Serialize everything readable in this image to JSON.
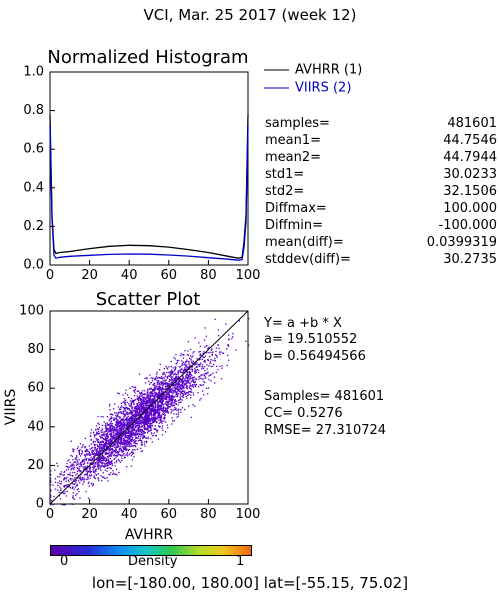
{
  "header": {
    "title": "VCI,  Mar. 25 2017 (week 12)"
  },
  "chart_data": [
    {
      "type": "line",
      "title": "Normalized Histogram",
      "xlim": [
        0,
        100
      ],
      "ylim": [
        0,
        1.0
      ],
      "x_ticks": [
        "0",
        "20",
        "40",
        "60",
        "80",
        "100"
      ],
      "y_ticks": [
        "0.0",
        "0.2",
        "0.4",
        "0.6",
        "0.8",
        "1.0"
      ],
      "legend_position": "right",
      "series": [
        {
          "name": "AVHRR (1)",
          "color": "#000000",
          "x": [
            0,
            1,
            2,
            3,
            5,
            10,
            20,
            30,
            40,
            50,
            60,
            70,
            80,
            90,
            95,
            97,
            98,
            99,
            100
          ],
          "y": [
            0.78,
            0.26,
            0.08,
            0.06,
            0.065,
            0.07,
            0.085,
            0.097,
            0.102,
            0.1,
            0.093,
            0.08,
            0.065,
            0.045,
            0.035,
            0.04,
            0.12,
            0.26,
            0.78
          ]
        },
        {
          "name": "VIIRS (2)",
          "color": "#0000cc",
          "x": [
            0,
            1,
            2,
            3,
            5,
            10,
            20,
            30,
            40,
            50,
            60,
            70,
            80,
            90,
            95,
            97,
            98,
            99,
            100
          ],
          "y": [
            0.72,
            0.24,
            0.05,
            0.035,
            0.04,
            0.045,
            0.05,
            0.055,
            0.057,
            0.056,
            0.052,
            0.046,
            0.038,
            0.03,
            0.025,
            0.028,
            0.09,
            0.22,
            0.72
          ]
        }
      ]
    },
    {
      "type": "scatter",
      "title": "Scatter Plot",
      "xlabel": "AVHRR",
      "ylabel": "VIIRS",
      "xlim": [
        0,
        100
      ],
      "ylim": [
        0,
        100
      ],
      "x_ticks": [
        "0",
        "20",
        "40",
        "60",
        "80",
        "100"
      ],
      "y_ticks": [
        "0",
        "20",
        "40",
        "60",
        "80",
        "100"
      ],
      "point_color": "#5a00c8",
      "fit_line": {
        "a": 19.510552,
        "b": 0.56494566
      },
      "reference_line": "1:1 diagonal"
    }
  ],
  "stats": [
    {
      "key": "samples=",
      "value": "481601"
    },
    {
      "key": "mean1=",
      "value": "44.7546"
    },
    {
      "key": "mean2=",
      "value": "44.7944"
    },
    {
      "key": "std1=",
      "value": "30.0233"
    },
    {
      "key": "std2=",
      "value": "32.1506"
    },
    {
      "key": "Diffmax=",
      "value": "100.000"
    },
    {
      "key": "Diffmin=",
      "value": "-100.000"
    },
    {
      "key": "mean(diff)=",
      "value": "0.0399319"
    },
    {
      "key": "stddev(diff)=",
      "value": "30.2735"
    }
  ],
  "regression": {
    "equation": "Y= a +b * X",
    "a_line": "a= 19.510552",
    "b_line": "b= 0.56494566",
    "samples_line": "Samples= 481601",
    "cc_line": "CC=  0.5276",
    "rmse_line": "RMSE= 27.310724"
  },
  "colorbar": {
    "label": "Density",
    "min_label": "0",
    "max_label": "1"
  },
  "footer": {
    "extent": "lon=[-180.00, 180.00] lat=[-55.15, 75.02]"
  }
}
